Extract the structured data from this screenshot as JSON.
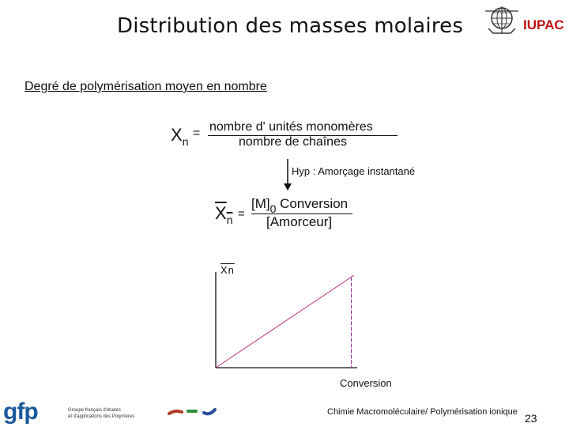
{
  "header": {
    "title": "Distribution des masses molaires",
    "iupac_label": "IUPAC"
  },
  "subtitle": "Degré de polymérisation moyen en nombre",
  "equation1": {
    "lhs": "X",
    "lhs_sub": "n",
    "equals": "=",
    "numerator": "nombre  d' unités  monomères",
    "denominator": "nombre  de  chaînes"
  },
  "hypothesis": "Hyp : Amorçage instantané",
  "equation2": {
    "lhs": "X",
    "lhs_sub": "n",
    "equals": "=",
    "numerator_main": "[M]",
    "numerator_sub": "0",
    "numerator_rest": " Conversion",
    "denominator": "[Amorceur]"
  },
  "chart_data": {
    "type": "line",
    "xlabel": "Conversion",
    "ylabel": "Xn",
    "series": [
      {
        "x": [
          0,
          1
        ],
        "y": [
          0,
          1
        ]
      }
    ],
    "marker_x": 0.98,
    "grid": false,
    "colors": {
      "line": "#c0307a",
      "marker": "#8a2a8a",
      "axis": "#111111"
    }
  },
  "footer": {
    "course": "Chimie Macromoléculaire/ Polymérisation ionique",
    "page_number": "23",
    "logo_text": "gfp",
    "logo_sub_line1": "Groupe français d'études",
    "logo_sub_line2": "et d'applications des Polymères"
  },
  "icons": [
    "iupac-logo-icon",
    "gfp-logo-icon",
    "arrow-down-icon"
  ]
}
